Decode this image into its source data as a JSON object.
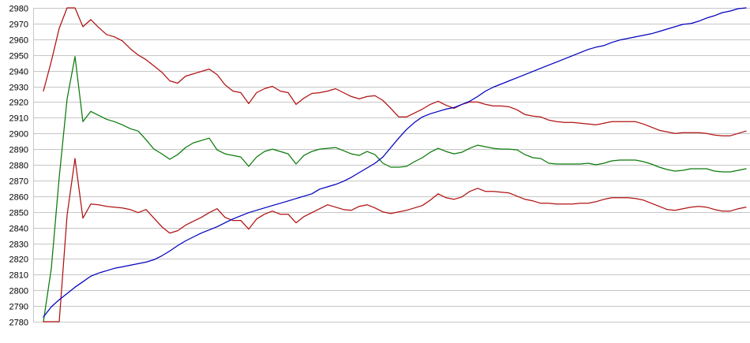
{
  "chart_data": {
    "type": "line",
    "title": "",
    "xlabel": "",
    "ylabel": "",
    "legend": "none",
    "grid": "horizontal",
    "x": {
      "labels_visible": false,
      "point_count": 90
    },
    "y_axis": {
      "min": 2780,
      "max": 2980,
      "tick_step": 10,
      "tick_labels": [
        "2980",
        "2970",
        "2960",
        "2950",
        "2940",
        "2930",
        "2920",
        "2910",
        "2900",
        "2890",
        "2880",
        "2870",
        "2860",
        "2850",
        "2840",
        "2830",
        "2820",
        "2810",
        "2800",
        "2790",
        "2780"
      ]
    },
    "series": [
      {
        "name": "red-upper",
        "color": "#B01212",
        "values": [
          2927,
          2946,
          2967,
          2980,
          2980,
          2968,
          2972.5,
          2967.5,
          2963,
          2961.5,
          2959,
          2954,
          2950,
          2947,
          2943,
          2939,
          2933.5,
          2932,
          2936.5,
          2938,
          2939.5,
          2941,
          2937.5,
          2931,
          2927,
          2926,
          2919,
          2926,
          2928.5,
          2930,
          2927,
          2926,
          2918.5,
          2922.5,
          2925.5,
          2926,
          2927,
          2928.5,
          2926,
          2923.5,
          2922,
          2923.5,
          2924,
          2921,
          2916,
          2910.5,
          2910.5,
          2913,
          2915.5,
          2918.5,
          2920.5,
          2918,
          2916,
          2918.5,
          2920,
          2920,
          2918.5,
          2917.5,
          2917.5,
          2917,
          2915,
          2912,
          2911,
          2910.5,
          2908.5,
          2907.5,
          2907,
          2907,
          2906.5,
          2906,
          2905.5,
          2906.5,
          2907.5,
          2907.5,
          2907.5,
          2907.5,
          2906,
          2904,
          2902,
          2901,
          2900,
          2900.5,
          2900.5,
          2900.5,
          2900,
          2899,
          2898.5,
          2898.5,
          2900,
          2901.5
        ]
      },
      {
        "name": "green-mid",
        "color": "#0B7A0B",
        "values": [
          2780,
          2814,
          2872,
          2922,
          2949,
          2907.5,
          2914,
          2911.5,
          2909,
          2907.5,
          2905.5,
          2903,
          2901.5,
          2896,
          2890,
          2887,
          2883.5,
          2886.5,
          2891,
          2894,
          2895.5,
          2897,
          2889.5,
          2887,
          2886,
          2885,
          2879,
          2885,
          2888.5,
          2890,
          2888.5,
          2887,
          2880.5,
          2886,
          2888.5,
          2890,
          2890.5,
          2891,
          2889,
          2887,
          2886,
          2888.5,
          2886.5,
          2881,
          2878.5,
          2878.5,
          2879,
          2882,
          2884.5,
          2888,
          2890.5,
          2888.5,
          2887,
          2888,
          2890.5,
          2892.5,
          2891.5,
          2890.5,
          2890,
          2890,
          2889.5,
          2886.5,
          2884.5,
          2884,
          2881,
          2880.5,
          2880.5,
          2880.5,
          2880.5,
          2881,
          2880,
          2881,
          2882.5,
          2883,
          2883,
          2883,
          2882,
          2880.5,
          2878.5,
          2877,
          2876,
          2876.5,
          2877.5,
          2877.5,
          2877.5,
          2876,
          2875.5,
          2875.5,
          2876.5,
          2877.5
        ]
      },
      {
        "name": "red-lower",
        "color": "#B01212",
        "values": [
          2780,
          2780,
          2780,
          2848,
          2884,
          2846,
          2855,
          2854.5,
          2853.5,
          2853,
          2852.5,
          2851.5,
          2849.5,
          2851.5,
          2846,
          2840.5,
          2836.5,
          2838,
          2841.5,
          2844,
          2846.5,
          2849.5,
          2852,
          2846.5,
          2844.5,
          2844.5,
          2839,
          2845.5,
          2848.5,
          2850.5,
          2848.5,
          2848.5,
          2843,
          2847,
          2849.5,
          2852,
          2854.5,
          2853,
          2851.5,
          2851,
          2853.5,
          2854.5,
          2852.5,
          2850,
          2849,
          2850,
          2851,
          2852.5,
          2854,
          2857.5,
          2861.5,
          2859,
          2858,
          2859.5,
          2863,
          2865,
          2863,
          2863,
          2862.5,
          2862,
          2860,
          2858,
          2857,
          2855.5,
          2855.5,
          2855,
          2855,
          2855,
          2855.5,
          2855.5,
          2856.5,
          2858,
          2859,
          2859,
          2859,
          2858.5,
          2857.5,
          2855.5,
          2853.5,
          2851.5,
          2851,
          2852,
          2853,
          2853.5,
          2853,
          2851.5,
          2850.5,
          2850.5,
          2852,
          2853
        ]
      },
      {
        "name": "blue-cumulative",
        "color": "#0000BE",
        "values": [
          2783,
          2789.5,
          2794,
          2798,
          2802,
          2805.5,
          2809,
          2811,
          2812.5,
          2814,
          2815,
          2816,
          2817,
          2818,
          2819.5,
          2822,
          2825,
          2828.5,
          2831.5,
          2834,
          2836.5,
          2838.5,
          2840.5,
          2843,
          2845.5,
          2847.5,
          2849.5,
          2851,
          2852.5,
          2854,
          2855.5,
          2857,
          2858.5,
          2860,
          2861.5,
          2864.5,
          2866,
          2867.5,
          2869.5,
          2872,
          2875,
          2878,
          2881,
          2885,
          2891,
          2897,
          2902.5,
          2907,
          2910.5,
          2912.5,
          2914,
          2915.5,
          2916.5,
          2918.5,
          2920.5,
          2923.5,
          2927,
          2929.5,
          2931.5,
          2933.5,
          2935.5,
          2937.5,
          2939.5,
          2941.5,
          2943.5,
          2945.5,
          2947.5,
          2949.5,
          2951.5,
          2953.5,
          2955,
          2956,
          2958,
          2959.5,
          2960.5,
          2961.5,
          2962.5,
          2963.5,
          2965,
          2966.5,
          2968,
          2969.5,
          2970,
          2971.5,
          2973.5,
          2975,
          2977,
          2978,
          2979.5,
          2980
        ]
      }
    ]
  },
  "colors": {
    "background": "#FFFFFF",
    "gridline": "#C6C6C6",
    "axis_line": "#C6C6C6",
    "tick_text": "#000000"
  }
}
